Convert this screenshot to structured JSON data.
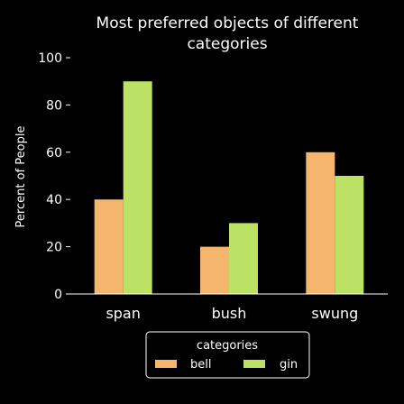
{
  "chart_data": {
    "type": "bar",
    "title": "Most preferred objects of different categories",
    "title_lines": [
      "Most preferred objects of different",
      "categories"
    ],
    "xlabel": "",
    "ylabel": "Percent of People",
    "ylim": [
      0,
      100
    ],
    "yticks": [
      0,
      20,
      40,
      60,
      80,
      100
    ],
    "categories": [
      "span",
      "bush",
      "swung"
    ],
    "series": [
      {
        "name": "bell",
        "color": "#f4b56c",
        "values": [
          40,
          20,
          60
        ]
      },
      {
        "name": "gin",
        "color": "#bbe265",
        "values": [
          90,
          30,
          50
        ]
      }
    ],
    "legend": {
      "title": "categories",
      "placement": "bottom-center"
    },
    "grid": false
  }
}
